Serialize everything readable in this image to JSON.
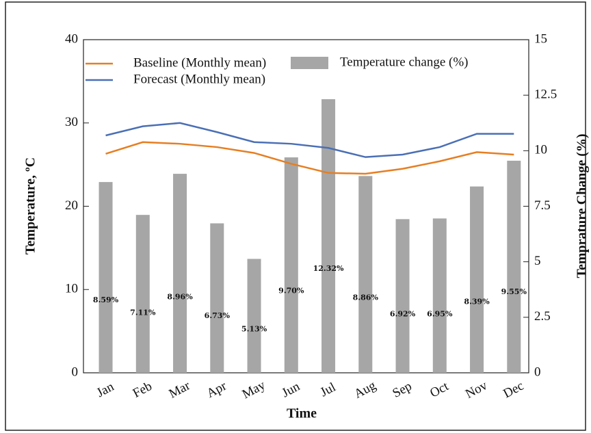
{
  "chart_data": {
    "type": "combo",
    "x_label": "Time",
    "y_label": "Temperature, ºC",
    "y2_label": "Temprature Change (%)",
    "categories": [
      "Jan",
      "Feb",
      "Mar",
      "Apr",
      "May",
      "Jun",
      "Jul",
      "Aug",
      "Sep",
      "Oct",
      "Nov",
      "Dec"
    ],
    "series": [
      {
        "name": "Baseline (Monthly mean)",
        "type": "line",
        "color": "#e67e22",
        "axis": "y",
        "values": [
          26.3,
          27.7,
          27.5,
          27.1,
          26.4,
          25.1,
          24.0,
          23.9,
          24.5,
          25.4,
          26.5,
          26.2
        ]
      },
      {
        "name": "Forecast (Monthly mean)",
        "type": "line",
        "color": "#4a6fb5",
        "axis": "y",
        "values": [
          28.5,
          29.6,
          30.0,
          28.9,
          27.7,
          27.5,
          27.0,
          25.9,
          26.2,
          27.1,
          28.7,
          28.7
        ]
      },
      {
        "name": "Temperature change (%)",
        "type": "bar",
        "color": "#a6a6a6",
        "axis": "y2",
        "values": [
          8.59,
          7.11,
          8.96,
          6.73,
          5.13,
          9.7,
          12.32,
          8.86,
          6.92,
          6.95,
          8.39,
          9.55
        ],
        "value_labels": [
          "8.59%",
          "7.11%",
          "8.96%",
          "6.73%",
          "5.13%",
          "9.70%",
          "12.32%",
          "8.86%",
          "6.92%",
          "6.95%",
          "8.39%",
          "9.55%"
        ]
      }
    ],
    "ylim": [
      0,
      40
    ],
    "yticks": [
      0,
      10,
      20,
      30,
      40
    ],
    "y2lim": [
      0,
      15
    ],
    "y2ticks": [
      0,
      2.5,
      5,
      7.5,
      10,
      12.5,
      15
    ]
  }
}
